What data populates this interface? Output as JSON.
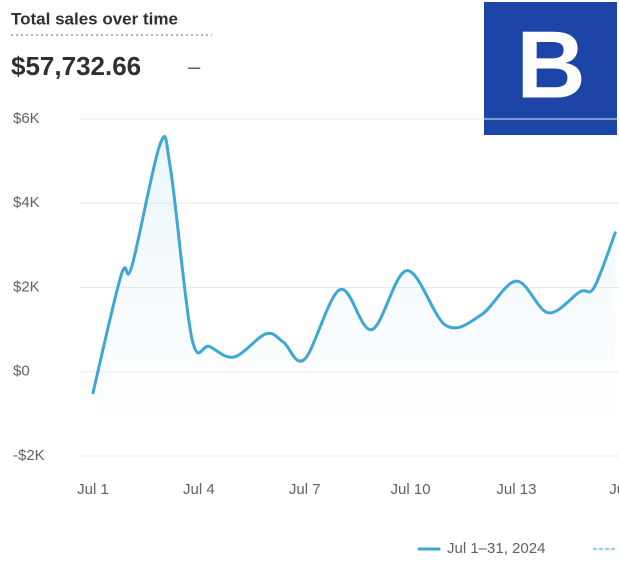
{
  "header": {
    "title": "Total sales over time",
    "total": "$57,732.66",
    "change": "–",
    "badge": "B"
  },
  "chart_data": {
    "type": "line",
    "x": [
      1,
      1.8,
      2.1,
      2.9,
      3.2,
      3.8,
      4.3,
      5.0,
      5.9,
      6.4,
      7.0,
      8.0,
      8.9,
      9.9,
      11.0,
      12.0,
      13.0,
      13.9,
      14.8,
      15.2,
      15.8
    ],
    "series": [
      {
        "name": "Jul 1–31, 2024",
        "color": "#3fa6d6",
        "values": [
          -500,
          2300,
          2500,
          5400,
          4800,
          800,
          600,
          350,
          900,
          700,
          300,
          1950,
          1000,
          2400,
          1100,
          1350,
          2150,
          1400,
          1900,
          2000,
          3300
        ]
      }
    ],
    "xlim": [
      1,
      15.85
    ],
    "xticks": [
      {
        "value": 1,
        "label": "Jul 1"
      },
      {
        "value": 4,
        "label": "Jul 4"
      },
      {
        "value": 7,
        "label": "Jul 7"
      },
      {
        "value": 10,
        "label": "Jul 10"
      },
      {
        "value": 13,
        "label": "Jul 13"
      },
      {
        "value": 16,
        "label": "Ju"
      }
    ],
    "ylim": [
      -2000,
      6000
    ],
    "yticks": [
      {
        "value": -2000,
        "label": "-$2K"
      },
      {
        "value": 0,
        "label": "$0"
      },
      {
        "value": 2000,
        "label": "$2K"
      },
      {
        "value": 4000,
        "label": "$4K"
      },
      {
        "value": 6000,
        "label": "$6K"
      }
    ],
    "grid": true
  }
}
